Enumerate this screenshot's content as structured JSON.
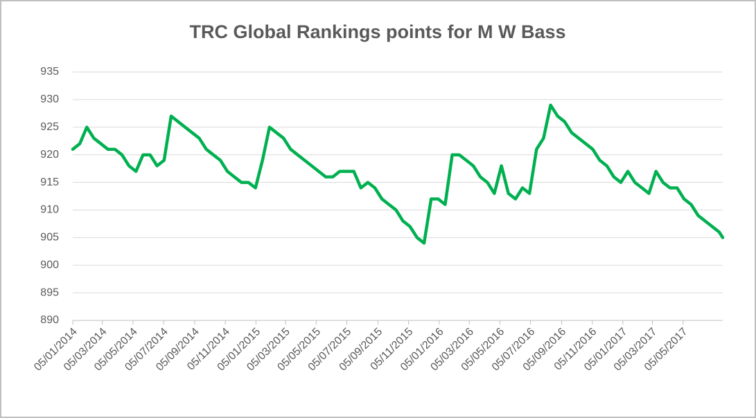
{
  "chart_data": {
    "type": "line",
    "title": "TRC Global Rankings points for M W Bass",
    "color": "#00b050",
    "grid": true,
    "ylim": [
      890,
      935
    ],
    "yticks": [
      890,
      895,
      900,
      905,
      910,
      915,
      920,
      925,
      930,
      935
    ],
    "xlim": [
      "2014-01-05",
      "2017-07-23"
    ],
    "xticks": [
      {
        "value": "2014-01-05",
        "label": "05/01/2014"
      },
      {
        "value": "2014-03-05",
        "label": "05/03/2014"
      },
      {
        "value": "2014-05-05",
        "label": "05/05/2014"
      },
      {
        "value": "2014-07-05",
        "label": "05/07/2014"
      },
      {
        "value": "2014-09-05",
        "label": "05/09/2014"
      },
      {
        "value": "2014-11-05",
        "label": "05/11/2014"
      },
      {
        "value": "2015-01-05",
        "label": "05/01/2015"
      },
      {
        "value": "2015-03-05",
        "label": "05/03/2015"
      },
      {
        "value": "2015-05-05",
        "label": "05/05/2015"
      },
      {
        "value": "2015-07-05",
        "label": "05/07/2015"
      },
      {
        "value": "2015-09-05",
        "label": "05/09/2015"
      },
      {
        "value": "2015-11-05",
        "label": "05/11/2015"
      },
      {
        "value": "2016-01-05",
        "label": "05/01/2016"
      },
      {
        "value": "2016-03-05",
        "label": "05/03/2016"
      },
      {
        "value": "2016-05-05",
        "label": "05/05/2016"
      },
      {
        "value": "2016-07-05",
        "label": "05/07/2016"
      },
      {
        "value": "2016-09-05",
        "label": "05/09/2016"
      },
      {
        "value": "2016-11-05",
        "label": "05/11/2016"
      },
      {
        "value": "2017-01-05",
        "label": "05/01/2017"
      },
      {
        "value": "2017-03-05",
        "label": "05/03/2017"
      },
      {
        "value": "2017-05-05",
        "label": "05/05/2017"
      }
    ],
    "x": [
      "2014-01-05",
      "2014-01-19",
      "2014-02-02",
      "2014-02-16",
      "2014-03-02",
      "2014-03-16",
      "2014-03-30",
      "2014-04-13",
      "2014-04-27",
      "2014-05-11",
      "2014-05-25",
      "2014-06-08",
      "2014-06-22",
      "2014-07-06",
      "2014-07-20",
      "2014-08-03",
      "2014-08-17",
      "2014-08-31",
      "2014-09-14",
      "2014-09-28",
      "2014-10-12",
      "2014-10-26",
      "2014-11-09",
      "2014-11-23",
      "2014-12-07",
      "2014-12-21",
      "2015-01-04",
      "2015-01-18",
      "2015-02-01",
      "2015-02-15",
      "2015-03-01",
      "2015-03-15",
      "2015-03-29",
      "2015-04-12",
      "2015-04-26",
      "2015-05-10",
      "2015-05-24",
      "2015-06-07",
      "2015-06-21",
      "2015-07-05",
      "2015-07-19",
      "2015-08-02",
      "2015-08-16",
      "2015-08-30",
      "2015-09-13",
      "2015-09-27",
      "2015-10-11",
      "2015-10-25",
      "2015-11-08",
      "2015-11-22",
      "2015-12-06",
      "2015-12-20",
      "2016-01-03",
      "2016-01-17",
      "2016-01-31",
      "2016-02-14",
      "2016-02-28",
      "2016-03-13",
      "2016-03-27",
      "2016-04-10",
      "2016-04-24",
      "2016-05-08",
      "2016-05-22",
      "2016-06-05",
      "2016-06-19",
      "2016-07-03",
      "2016-07-17",
      "2016-07-31",
      "2016-08-14",
      "2016-08-28",
      "2016-09-11",
      "2016-09-25",
      "2016-10-09",
      "2016-10-23",
      "2016-11-06",
      "2016-11-20",
      "2016-12-04",
      "2016-12-18",
      "2017-01-01",
      "2017-01-15",
      "2017-01-29",
      "2017-02-12",
      "2017-02-26",
      "2017-03-12",
      "2017-03-26",
      "2017-04-09",
      "2017-04-23",
      "2017-05-07",
      "2017-05-21",
      "2017-06-04",
      "2017-06-18",
      "2017-07-02",
      "2017-07-16",
      "2017-07-23"
    ],
    "values": [
      921,
      922,
      925,
      923,
      922,
      921,
      921,
      920,
      918,
      917,
      920,
      920,
      918,
      919,
      927,
      926,
      925,
      924,
      923,
      921,
      920,
      919,
      917,
      916,
      915,
      915,
      914,
      919,
      925,
      924,
      923,
      921,
      920,
      919,
      918,
      917,
      916,
      916,
      917,
      917,
      917,
      914,
      915,
      914,
      912,
      911,
      910,
      908,
      907,
      905,
      904,
      912,
      912,
      911,
      920,
      920,
      919,
      918,
      916,
      915,
      913,
      918,
      913,
      912,
      914,
      913,
      921,
      923,
      929,
      927,
      926,
      924,
      923,
      922,
      921,
      919,
      918,
      916,
      915,
      917,
      915,
      914,
      913,
      917,
      915,
      914,
      914,
      912,
      911,
      909,
      908,
      907,
      906,
      905
    ]
  }
}
